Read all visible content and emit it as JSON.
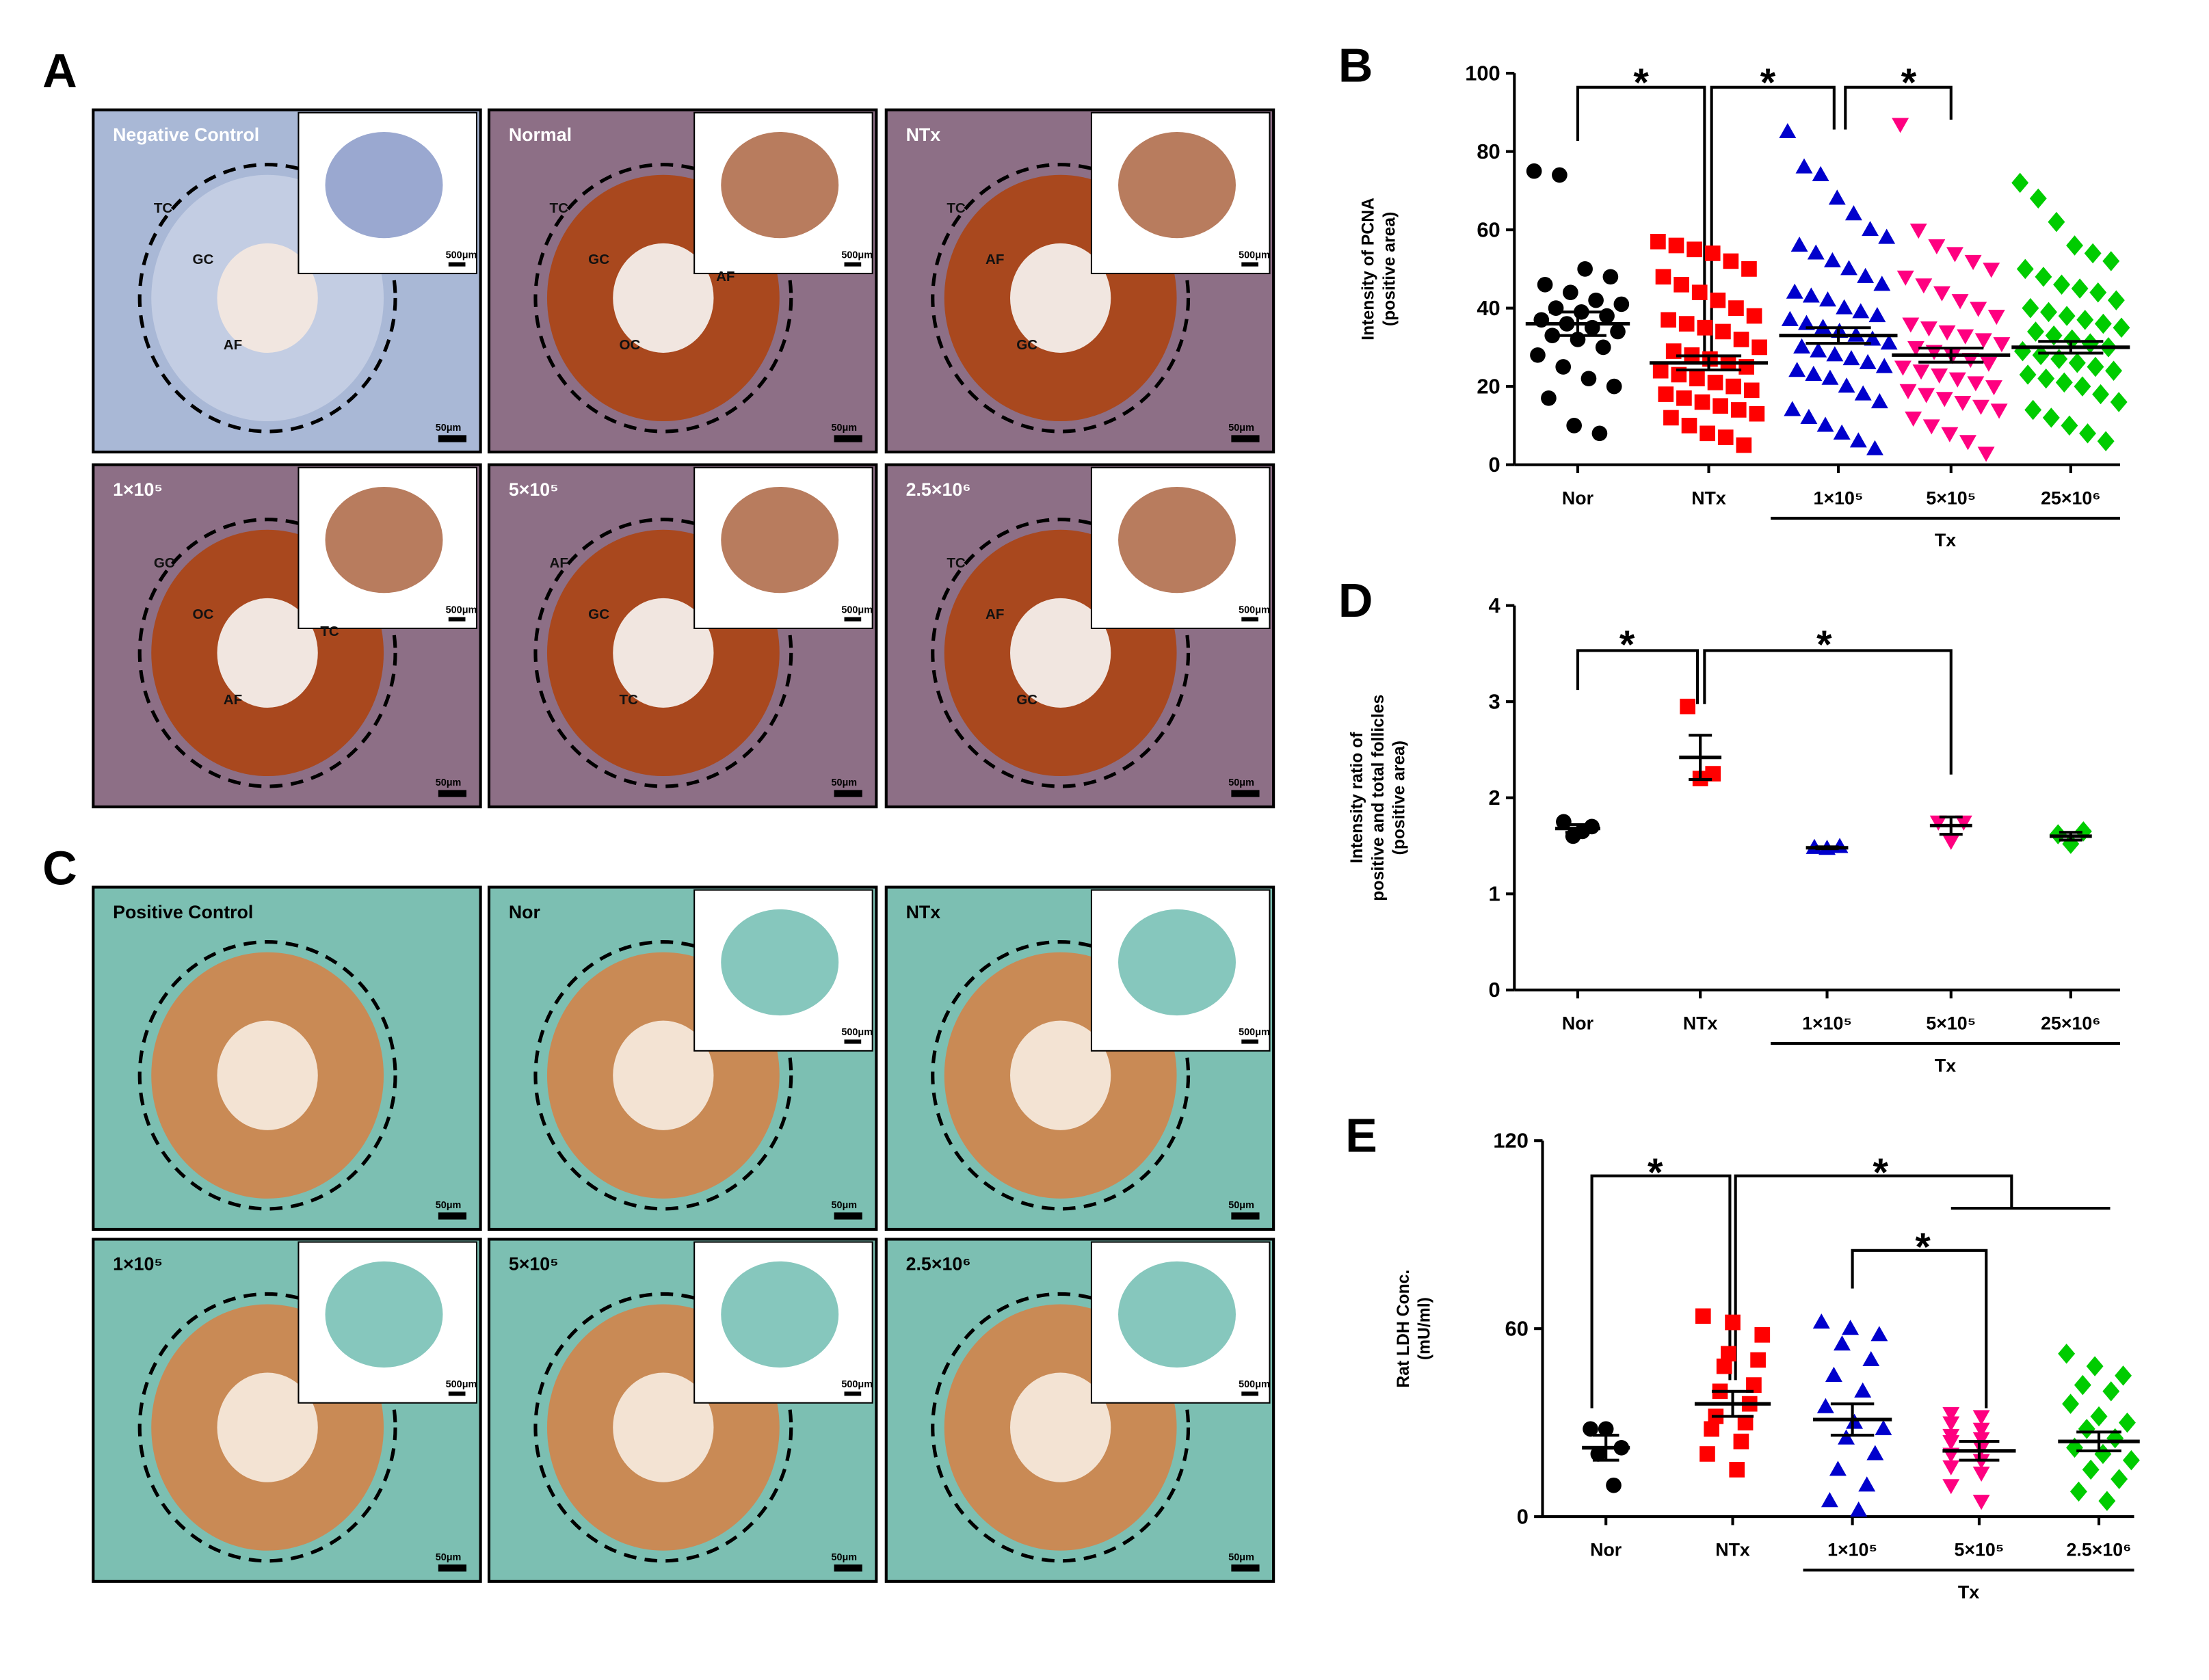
{
  "panels": [
    {
      "letter": "A",
      "images": [
        {
          "label": "Negative Control",
          "inset": "500μm",
          "scale": "50μm",
          "marks": [
            "TC",
            "GC",
            "AF"
          ]
        },
        {
          "label": "Normal",
          "inset": "500μm",
          "scale": "50μm",
          "marks": [
            "TC",
            "GC",
            "OC",
            "AF"
          ]
        },
        {
          "label": "NTx",
          "inset": "500μm",
          "scale": "50μm",
          "marks": [
            "TC",
            "AF",
            "GC"
          ]
        },
        {
          "label": "1×10⁵",
          "inset": "500μm",
          "scale": "50μm",
          "marks": [
            "GC",
            "OC",
            "AF",
            "TC"
          ]
        },
        {
          "label": "5×10⁵",
          "inset": "500μm",
          "scale": "50μm",
          "marks": [
            "AF",
            "GC",
            "TC"
          ]
        },
        {
          "label": "2.5×10⁶",
          "inset": "500μm",
          "scale": "50μm",
          "marks": [
            "TC",
            "AF",
            "GC"
          ]
        }
      ]
    },
    {
      "letter": "C",
      "images": [
        {
          "label": "Positive Control",
          "scale": "50μm"
        },
        {
          "label": "Nor",
          "inset": "500μm",
          "scale": "50μm"
        },
        {
          "label": "NTx",
          "inset": "500μm",
          "scale": "50μm"
        },
        {
          "label": "1×10⁵",
          "inset": "500μm",
          "scale": "50μm"
        },
        {
          "label": "5×10⁵",
          "inset": "500μm",
          "scale": "50μm"
        },
        {
          "label": "2.5×10⁶",
          "inset": "500μm",
          "scale": "50μm"
        }
      ]
    }
  ],
  "chart_data": [
    {
      "type": "dot-plot",
      "panel": "B",
      "ylabel": [
        "Intensity of PCNA",
        "(positive area)"
      ],
      "categories": [
        "Nor",
        "NTx",
        "1×10⁵",
        "5×10⁵",
        "25×10⁶"
      ],
      "group_label": "Tx",
      "significance": [
        "*",
        "*",
        "*"
      ],
      "ylim": [
        0,
        100
      ],
      "yticks": [
        0,
        20,
        40,
        60,
        80,
        100
      ],
      "groups": [
        {
          "color": "#000000",
          "marker": "circle",
          "mean": 36,
          "sem": 3,
          "values": [
            75,
            74,
            50,
            48,
            46,
            44,
            42,
            41,
            40,
            39,
            38,
            37,
            36,
            35,
            34,
            33,
            32,
            30,
            28,
            25,
            22,
            20,
            17,
            10,
            8
          ]
        },
        {
          "color": "#ff0000",
          "marker": "square",
          "mean": 26,
          "sem": 1.8,
          "values": [
            57,
            56,
            55,
            54,
            52,
            50,
            48,
            46,
            44,
            42,
            40,
            38,
            37,
            36,
            35,
            34,
            32,
            30,
            29,
            28,
            27,
            26,
            25,
            24,
            23,
            22,
            21,
            20,
            19,
            18,
            17,
            16,
            15,
            14,
            13,
            12,
            10,
            8,
            7,
            5
          ]
        },
        {
          "color": "#0000cc",
          "marker": "triangle",
          "mean": 33,
          "sem": 2,
          "values": [
            85,
            76,
            74,
            68,
            64,
            60,
            58,
            56,
            54,
            52,
            50,
            48,
            46,
            44,
            43,
            42,
            40,
            39,
            38,
            37,
            36,
            35,
            34,
            33,
            32,
            31,
            30,
            29,
            28,
            27,
            26,
            25,
            24,
            23,
            22,
            20,
            18,
            16,
            14,
            12,
            10,
            8,
            6,
            4
          ]
        },
        {
          "color": "#ff0080",
          "marker": "down-triangle",
          "mean": 28,
          "sem": 1.8,
          "values": [
            87,
            60,
            56,
            54,
            52,
            50,
            48,
            46,
            44,
            42,
            40,
            38,
            36,
            35,
            34,
            33,
            32,
            31,
            30,
            29,
            28,
            27,
            26,
            25,
            24,
            23,
            22,
            21,
            20,
            19,
            18,
            17,
            16,
            15,
            14,
            12,
            10,
            8,
            6,
            3
          ]
        },
        {
          "color": "#00cc00",
          "marker": "diamond",
          "mean": 30,
          "sem": 1.5,
          "values": [
            72,
            68,
            62,
            56,
            54,
            52,
            50,
            48,
            46,
            45,
            44,
            42,
            40,
            39,
            38,
            37,
            36,
            35,
            34,
            33,
            32,
            31,
            30,
            29,
            28,
            27,
            26,
            25,
            24,
            23,
            22,
            21,
            20,
            18,
            16,
            14,
            12,
            10,
            8,
            6
          ]
        }
      ]
    },
    {
      "type": "dot-plot",
      "panel": "D",
      "ylabel": [
        "Intensity ratio of",
        "positive and total follicles",
        "(positive area)"
      ],
      "categories": [
        "Nor",
        "NTx",
        "1×10⁵",
        "5×10⁵",
        "25×10⁶"
      ],
      "group_label": "Tx",
      "significance": [
        "*",
        "*"
      ],
      "ylim": [
        0,
        4
      ],
      "yticks": [
        0,
        1,
        2,
        3,
        4
      ],
      "groups": [
        {
          "color": "#000000",
          "marker": "circle",
          "mean": 1.68,
          "sem": 0.04,
          "values": [
            1.75,
            1.7,
            1.65,
            1.6
          ]
        },
        {
          "color": "#ff0000",
          "marker": "square",
          "mean": 2.42,
          "sem": 0.23,
          "values": [
            2.95,
            2.2,
            2.25
          ]
        },
        {
          "color": "#0000cc",
          "marker": "triangle",
          "mean": 1.48,
          "sem": 0.01,
          "values": [
            1.48,
            1.47,
            1.49
          ]
        },
        {
          "color": "#ff0080",
          "marker": "down-triangle",
          "mean": 1.71,
          "sem": 0.09,
          "values": [
            1.75,
            1.55,
            1.75
          ]
        },
        {
          "color": "#00cc00",
          "marker": "diamond",
          "mean": 1.6,
          "sem": 0.04,
          "values": [
            1.62,
            1.52,
            1.65
          ]
        }
      ]
    },
    {
      "type": "dot-plot",
      "panel": "E",
      "ylabel": [
        "Rat LDH Conc.",
        "(mU/ml)"
      ],
      "categories": [
        "Nor",
        "NTx",
        "1×10⁵",
        "5×10⁵",
        "2.5×10⁶"
      ],
      "group_label": "Tx",
      "significance": [
        "*",
        "*",
        "*"
      ],
      "ylim": [
        0,
        120
      ],
      "yticks": [
        0,
        60,
        120
      ],
      "groups": [
        {
          "color": "#000000",
          "marker": "circle",
          "mean": 22,
          "sem": 4,
          "values": [
            28,
            28,
            22,
            20,
            10
          ]
        },
        {
          "color": "#ff0000",
          "marker": "square",
          "mean": 36,
          "sem": 4,
          "values": [
            64,
            62,
            58,
            52,
            50,
            48,
            42,
            40,
            36,
            32,
            30,
            28,
            24,
            20,
            15
          ]
        },
        {
          "color": "#0000cc",
          "marker": "triangle",
          "mean": 31,
          "sem": 5,
          "values": [
            62,
            60,
            58,
            55,
            50,
            45,
            40,
            35,
            30,
            28,
            25,
            20,
            15,
            10,
            5,
            2
          ]
        },
        {
          "color": "#ff0080",
          "marker": "down-triangle",
          "mean": 21,
          "sem": 3,
          "values": [
            33,
            32,
            30,
            28,
            26,
            25,
            24,
            22,
            20,
            18,
            16,
            14,
            10,
            5
          ]
        },
        {
          "color": "#00cc00",
          "marker": "diamond",
          "mean": 24,
          "sem": 3,
          "values": [
            52,
            48,
            45,
            42,
            40,
            36,
            32,
            30,
            28,
            25,
            22,
            20,
            18,
            15,
            12,
            8,
            5
          ]
        }
      ]
    }
  ]
}
